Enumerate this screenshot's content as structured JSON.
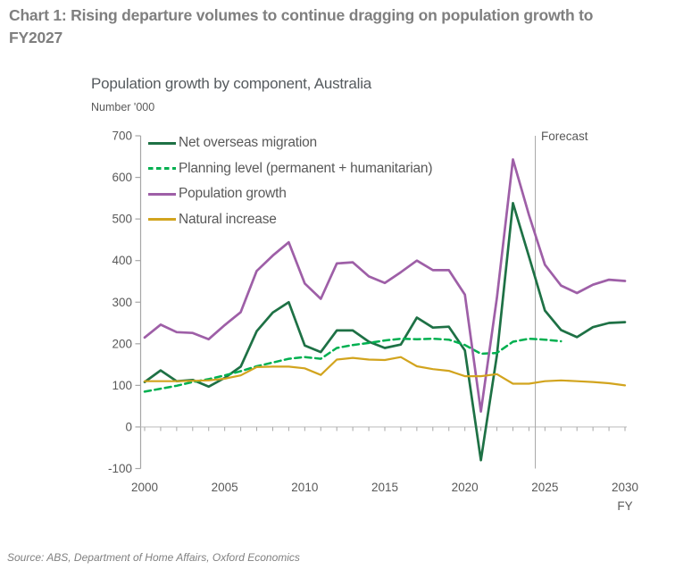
{
  "header": {
    "title": "Chart 1: Rising departure volumes to continue dragging on population growth to FY2027"
  },
  "chart": {
    "subtitle": "Population growth by component, Australia",
    "unit_label": "Number '000",
    "fy_label": "FY",
    "forecast_label": "Forecast"
  },
  "footer": {
    "source": "Source: ABS, Department of Home Affairs, Oxford Economics"
  },
  "chart_data": {
    "type": "line",
    "title": "Population growth by component, Australia",
    "xlabel": "FY",
    "ylabel": "Number '000",
    "xlim": [
      2000,
      2030
    ],
    "ylim": [
      -100,
      700
    ],
    "xtick_interval": 5,
    "ytick_interval": 100,
    "minor_xticks_every_year": true,
    "grid": false,
    "legend_position": "top-left-inside",
    "forecast_divider_x": 2024.4,
    "axis_color": "#a6a6a6",
    "zero_line_color": "#c2c2c2",
    "forecast_line_color": "#a6a6a6",
    "x": [
      2000,
      2001,
      2002,
      2003,
      2004,
      2005,
      2006,
      2007,
      2008,
      2009,
      2010,
      2011,
      2012,
      2013,
      2014,
      2015,
      2016,
      2017,
      2018,
      2019,
      2020,
      2021,
      2022,
      2023,
      2024,
      2025,
      2026,
      2027,
      2028,
      2029,
      2030
    ],
    "series": [
      {
        "name": "Net overseas migration",
        "color": "#1e7145",
        "style": "solid",
        "width": 2.7,
        "values": [
          108,
          136,
          110,
          113,
          97,
          118,
          145,
          230,
          275,
          300,
          196,
          180,
          232,
          232,
          205,
          190,
          198,
          263,
          239,
          241,
          184,
          -80,
          172,
          538,
          410,
          280,
          233,
          216,
          240,
          250,
          252
        ]
      },
      {
        "name": "Planning level (permanent + humanitarian)",
        "color": "#00b050",
        "style": "dashed",
        "width": 2.5,
        "values": [
          85,
          92,
          99,
          108,
          115,
          124,
          134,
          146,
          155,
          164,
          168,
          164,
          190,
          197,
          202,
          208,
          212,
          211,
          212,
          210,
          197,
          176,
          178,
          205,
          212,
          210,
          206,
          null,
          null,
          null,
          null
        ]
      },
      {
        "name": "Population growth",
        "color": "#9e5fa7",
        "style": "solid",
        "width": 2.7,
        "values": [
          215,
          246,
          228,
          226,
          211,
          245,
          276,
          375,
          412,
          444,
          345,
          308,
          393,
          396,
          362,
          346,
          372,
          400,
          377,
          377,
          318,
          37,
          310,
          643,
          510,
          390,
          340,
          322,
          342,
          354,
          351
        ]
      },
      {
        "name": "Natural increase",
        "color": "#d2a41e",
        "style": "solid",
        "width": 2.2,
        "values": [
          110,
          110,
          110,
          111,
          112,
          116,
          124,
          144,
          145,
          145,
          141,
          125,
          162,
          166,
          162,
          161,
          168,
          146,
          139,
          135,
          122,
          122,
          127,
          104,
          104,
          110,
          112,
          110,
          108,
          105,
          100
        ]
      }
    ]
  }
}
